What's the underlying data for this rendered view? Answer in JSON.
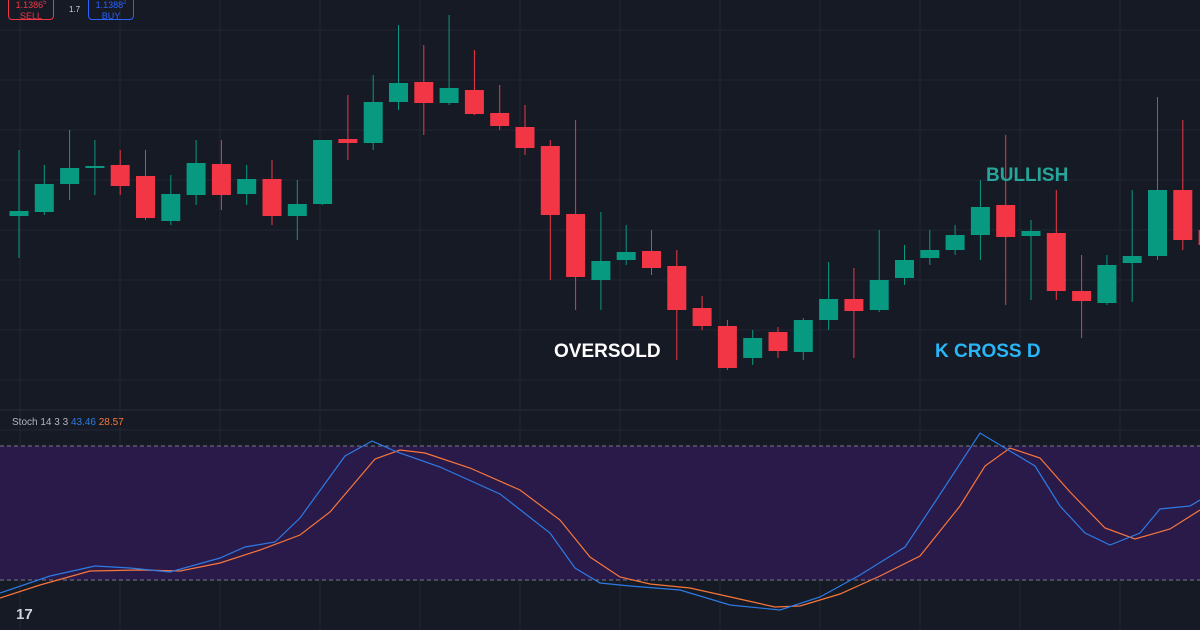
{
  "order_panel": {
    "sell": {
      "price": "1.1386",
      "price_sup": "5",
      "label": "SELL"
    },
    "spread": "1.7",
    "buy": {
      "price": "1.1388",
      "price_sup": "2",
      "label": "BUY"
    }
  },
  "indicator": {
    "name": "Stoch 14 3 3",
    "k_value": "43.46",
    "d_value": "28.57"
  },
  "annotations": {
    "oversold": "OVERSOLD",
    "bullish": "BULLISH",
    "cross": "K CROSS D"
  },
  "logo": "17"
}
